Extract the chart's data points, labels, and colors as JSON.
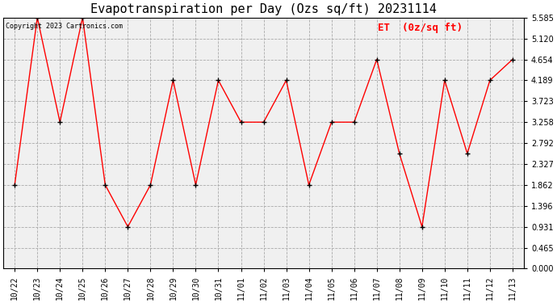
{
  "title": "Evapotranspiration per Day (Ozs sq/ft) 20231114",
  "copyright": "Copyright 2023 Cartronics.com",
  "legend_label": "ET  (0z/sq ft)",
  "dates": [
    "10/22",
    "10/23",
    "10/24",
    "10/25",
    "10/26",
    "10/27",
    "10/28",
    "10/29",
    "10/30",
    "10/31",
    "11/01",
    "11/02",
    "11/03",
    "11/04",
    "11/05",
    "11/06",
    "11/07",
    "11/08",
    "11/09",
    "11/10",
    "11/11",
    "11/12",
    "11/13"
  ],
  "values": [
    1.862,
    5.585,
    3.258,
    5.585,
    1.862,
    0.931,
    1.862,
    4.189,
    1.862,
    4.189,
    3.258,
    3.258,
    4.189,
    1.862,
    3.258,
    3.258,
    4.654,
    2.56,
    0.931,
    4.189,
    2.56,
    4.189,
    4.654
  ],
  "ylim": [
    0.0,
    5.585
  ],
  "yticks": [
    0.0,
    0.465,
    0.931,
    1.396,
    1.862,
    2.327,
    2.792,
    3.258,
    3.723,
    4.189,
    4.654,
    5.12,
    5.585
  ],
  "line_color": "red",
  "marker_color": "black",
  "bg_color": "#ffffff",
  "plot_bg_color": "#f0f0f0",
  "grid_color": "#aaaaaa",
  "title_color": "black",
  "copyright_color": "black",
  "legend_color": "red",
  "title_fontsize": 11,
  "tick_fontsize": 7,
  "legend_fontsize": 9,
  "copyright_fontsize": 6
}
